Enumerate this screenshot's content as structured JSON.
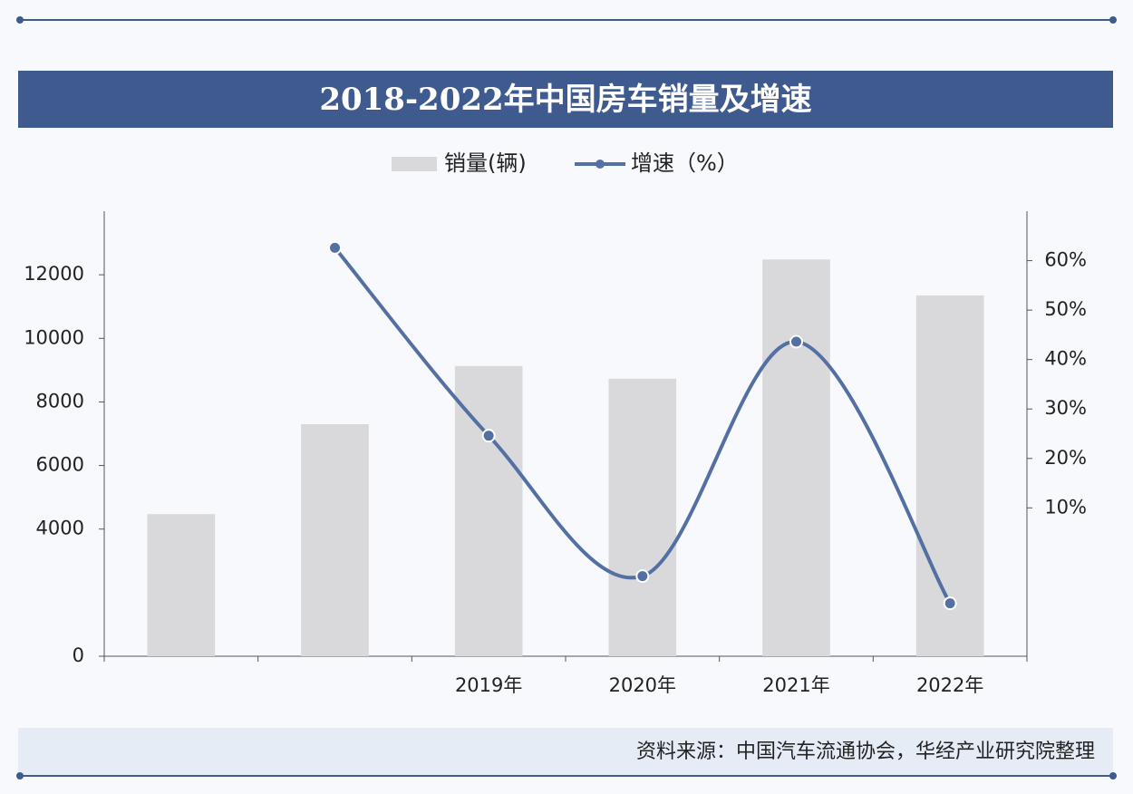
{
  "chart_data": {
    "type": "bar-line",
    "title": "2018-2022年中国房车销量及增速",
    "categories": [
      null,
      null,
      "2019年",
      "2020年",
      "2021年",
      "2022年"
    ],
    "series": [
      {
        "name": "销量(辆)",
        "type": "bar",
        "color": "#d9d9db",
        "values": [
          4470,
          7300,
          9130,
          8730,
          12480,
          11350
        ]
      },
      {
        "name": "增速（%）",
        "type": "line",
        "axis": "y2",
        "color": "#5470a3",
        "values": [
          null,
          62.6,
          24.6,
          -3.8,
          43.6,
          -9.3
        ]
      }
    ],
    "ylim": [
      0,
      14000
    ],
    "yticks": [
      0,
      4000,
      6000,
      8000,
      10000,
      12000
    ],
    "y2lim": [
      -20,
      70
    ],
    "y2ticks": [
      {
        "value": 10,
        "label": "10%"
      },
      {
        "value": 20,
        "label": "20%"
      },
      {
        "value": 30,
        "label": "30%"
      },
      {
        "value": 40,
        "label": "40%"
      },
      {
        "value": 50,
        "label": "50%"
      },
      {
        "value": 60,
        "label": "60%"
      }
    ],
    "source": "资料来源：中国汽车流通协会，华经产业研究院整理"
  }
}
